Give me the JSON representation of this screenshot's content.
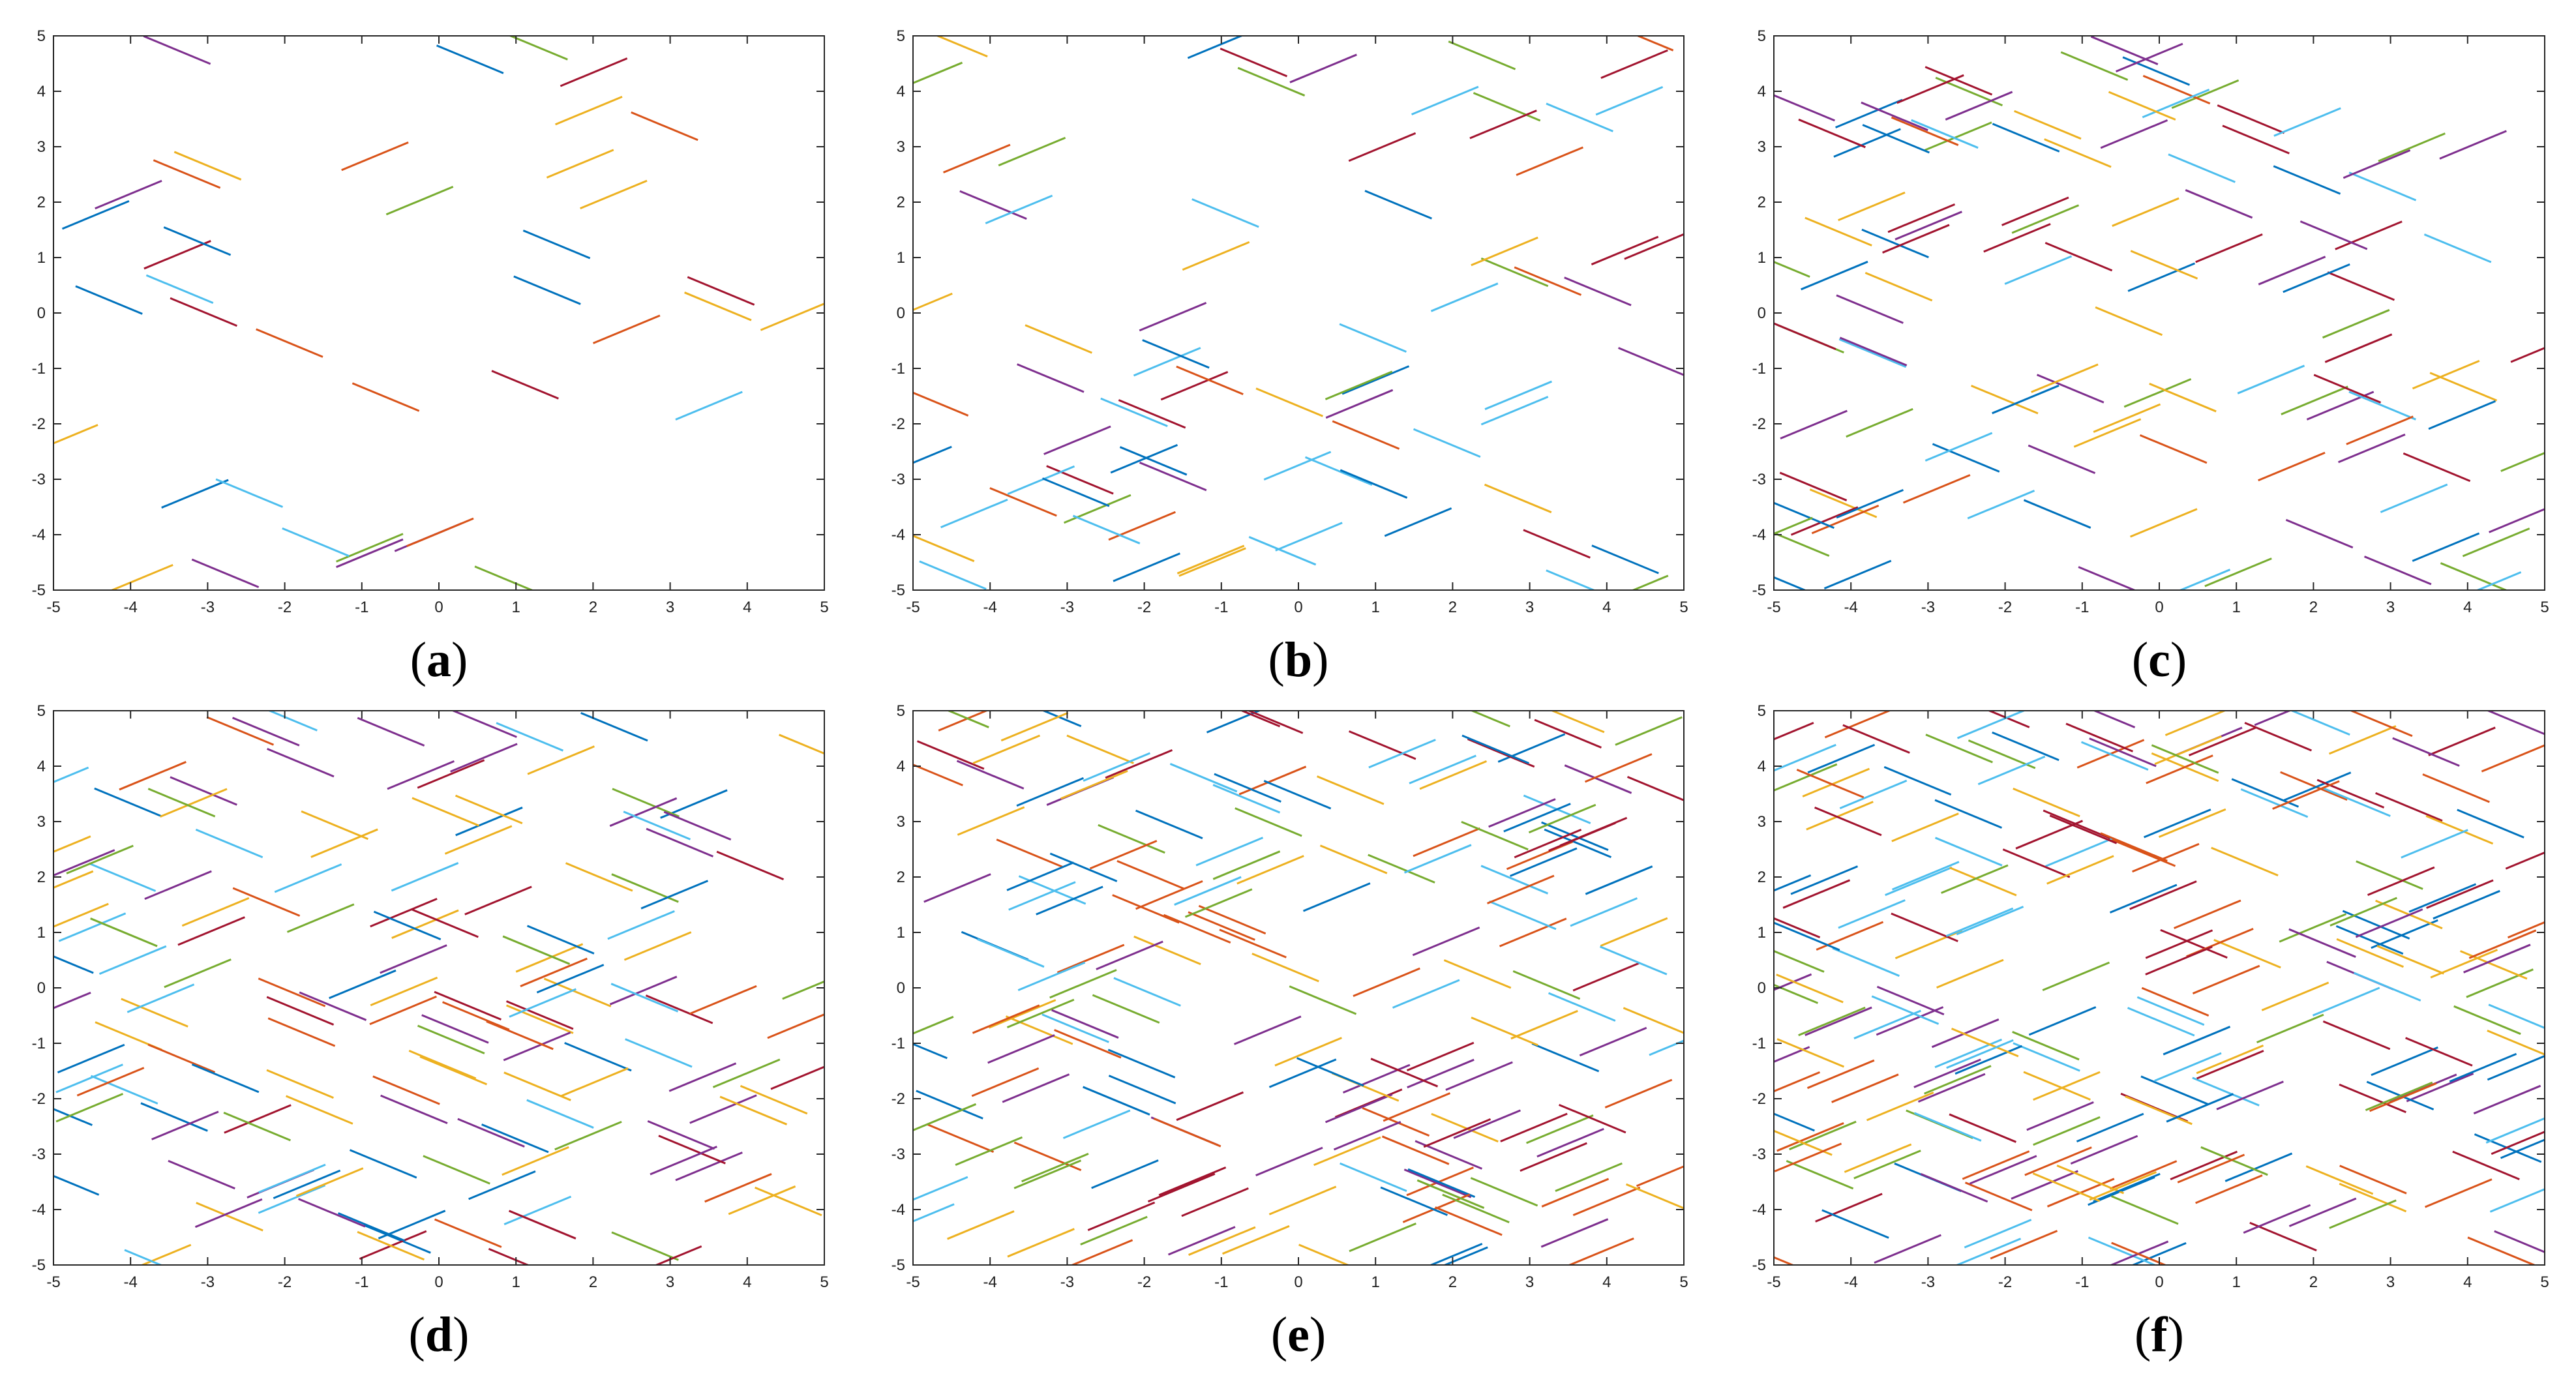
{
  "figure": {
    "layout": "2 rows x 3 columns",
    "palette": [
      "#0072BD",
      "#D95319",
      "#EDB120",
      "#7E2F8E",
      "#77AC30",
      "#4DBEEE",
      "#A2142F"
    ]
  },
  "chart_data": [
    {
      "type": "line",
      "label": "a",
      "caption_open": "(",
      "caption_close": ")",
      "segment_count": 40,
      "segment_length": 1.0,
      "segment_directions": [
        "+30°",
        "-30°"
      ],
      "xlim": [
        -5,
        5
      ],
      "ylim": [
        -5,
        5
      ],
      "x_ticks": [
        "-5",
        "-4",
        "-3",
        "-2",
        "-1",
        "0",
        "1",
        "2",
        "3",
        "4",
        "5"
      ],
      "y_ticks": [
        "5",
        "4",
        "3",
        "2",
        "1",
        "0",
        "-1",
        "-2",
        "-3",
        "-4",
        "-5"
      ],
      "grid": false,
      "legend": "none"
    },
    {
      "type": "line",
      "label": "b",
      "caption_open": "(",
      "caption_close": ")",
      "segment_count": 80,
      "segment_length": 1.0,
      "segment_directions": [
        "+30°",
        "-30°"
      ],
      "xlim": [
        -5,
        5
      ],
      "ylim": [
        -5,
        5
      ],
      "x_ticks": [
        "-5",
        "-4",
        "-3",
        "-2",
        "-1",
        "0",
        "1",
        "2",
        "3",
        "4",
        "5"
      ],
      "y_ticks": [
        "5",
        "4",
        "3",
        "2",
        "1",
        "0",
        "-1",
        "-2",
        "-3",
        "-4",
        "-5"
      ],
      "grid": false,
      "legend": "none"
    },
    {
      "type": "line",
      "label": "c",
      "caption_open": "(",
      "caption_close": ")",
      "segment_count": 120,
      "segment_length": 1.0,
      "segment_directions": [
        "+30°",
        "-30°"
      ],
      "xlim": [
        -5,
        5
      ],
      "ylim": [
        -5,
        5
      ],
      "x_ticks": [
        "-5",
        "-4",
        "-3",
        "-2",
        "-1",
        "0",
        "1",
        "2",
        "3",
        "4",
        "5"
      ],
      "y_ticks": [
        "5",
        "4",
        "3",
        "2",
        "1",
        "0",
        "-1",
        "-2",
        "-3",
        "-4",
        "-5"
      ],
      "grid": false,
      "legend": "none"
    },
    {
      "type": "line",
      "label": "d",
      "caption_open": "(",
      "caption_close": ")",
      "segment_count": 160,
      "segment_length": 1.0,
      "segment_directions": [
        "+30°",
        "-30°"
      ],
      "xlim": [
        -5,
        5
      ],
      "ylim": [
        -5,
        5
      ],
      "x_ticks": [
        "-5",
        "-4",
        "-3",
        "-2",
        "-1",
        "0",
        "1",
        "2",
        "3",
        "4",
        "5"
      ],
      "y_ticks": [
        "5",
        "4",
        "3",
        "2",
        "1",
        "0",
        "-1",
        "-2",
        "-3",
        "-4",
        "-5"
      ],
      "grid": false,
      "legend": "none"
    },
    {
      "type": "line",
      "label": "e",
      "caption_open": "(",
      "caption_close": ")",
      "segment_count": 200,
      "segment_length": 1.0,
      "segment_directions": [
        "+30°",
        "-30°"
      ],
      "xlim": [
        -5,
        5
      ],
      "ylim": [
        -5,
        5
      ],
      "x_ticks": [
        "-5",
        "-4",
        "-3",
        "-2",
        "-1",
        "0",
        "1",
        "2",
        "3",
        "4",
        "5"
      ],
      "y_ticks": [
        "5",
        "4",
        "3",
        "2",
        "1",
        "0",
        "-1",
        "-2",
        "-3",
        "-4",
        "-5"
      ],
      "grid": false,
      "legend": "none"
    },
    {
      "type": "line",
      "label": "f",
      "caption_open": "(",
      "caption_close": ")",
      "segment_count": 240,
      "segment_length": 1.0,
      "segment_directions": [
        "+30°",
        "-30°"
      ],
      "xlim": [
        -5,
        5
      ],
      "ylim": [
        -5,
        5
      ],
      "x_ticks": [
        "-5",
        "-4",
        "-3",
        "-2",
        "-1",
        "0",
        "1",
        "2",
        "3",
        "4",
        "5"
      ],
      "y_ticks": [
        "5",
        "4",
        "3",
        "2",
        "1",
        "0",
        "-1",
        "-2",
        "-3",
        "-4",
        "-5"
      ],
      "grid": false,
      "legend": "none"
    }
  ]
}
